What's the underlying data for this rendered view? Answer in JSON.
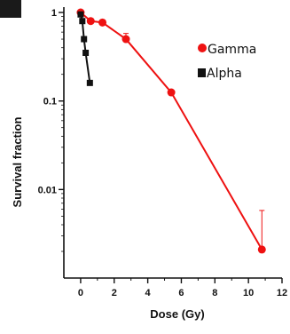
{
  "chart_data": {
    "type": "line",
    "xlabel": "Dose (Gy)",
    "ylabel": "Survival fraction",
    "xlim": [
      -1,
      12
    ],
    "ylim": [
      0.001,
      1.15
    ],
    "yscale": "log",
    "xticks": [
      0,
      2,
      4,
      6,
      8,
      10,
      12
    ],
    "xtick_labels": [
      "0",
      "2",
      "4",
      "6",
      "8",
      "10",
      "12"
    ],
    "yticks": [
      1,
      0.1,
      0.01
    ],
    "ytick_labels": [
      "1",
      "0.1",
      "0.01"
    ],
    "legend_position": "top-right",
    "grid": false,
    "series": [
      {
        "name": "Gamma",
        "color": "#ee1111",
        "marker": "circle",
        "x": [
          0,
          0.6,
          1.3,
          2.7,
          5.4,
          10.8
        ],
        "y": [
          1.0,
          0.8,
          0.77,
          0.5,
          0.125,
          0.0021
        ],
        "err_upper": [
          null,
          null,
          null,
          0.58,
          null,
          0.0058
        ]
      },
      {
        "name": "Alpha",
        "color": "#111111",
        "marker": "square",
        "x": [
          0,
          0.1,
          0.2,
          0.3,
          0.55
        ],
        "y": [
          0.95,
          0.8,
          0.5,
          0.35,
          0.16
        ]
      }
    ]
  }
}
